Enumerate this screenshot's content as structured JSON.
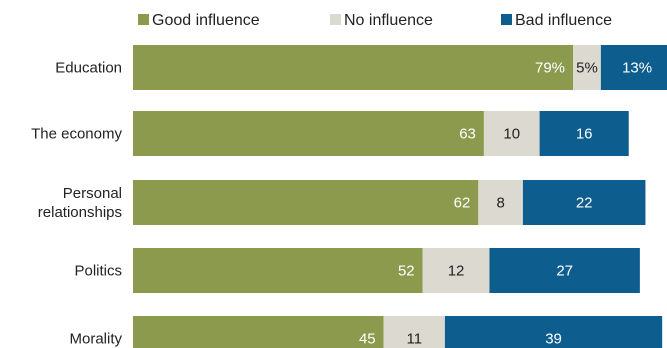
{
  "chart_data": {
    "type": "bar",
    "orientation": "horizontal",
    "stacked": true,
    "categories": [
      "Education",
      "The economy",
      "Personal relationships",
      "Politics",
      "Morality"
    ],
    "category_lines": [
      [
        "Education"
      ],
      [
        "The economy"
      ],
      [
        "Personal",
        "relationships"
      ],
      [
        "Politics"
      ],
      [
        "Morality"
      ]
    ],
    "series": [
      {
        "name": "Good influence",
        "color": "#8c9a4e",
        "text_color": "#ffffff",
        "values": [
          79,
          63,
          62,
          52,
          45
        ],
        "labels": [
          "79%",
          "63",
          "62",
          "52",
          "45"
        ]
      },
      {
        "name": "No influence",
        "color": "#dcdad0",
        "text_color": "#222222",
        "values": [
          5,
          10,
          8,
          12,
          11
        ],
        "labels": [
          "5%",
          "10",
          "8",
          "12",
          "11"
        ]
      },
      {
        "name": "Bad influence",
        "color": "#0d5d8e",
        "text_color": "#ffffff",
        "values": [
          13,
          16,
          22,
          27,
          39
        ],
        "labels": [
          "13%",
          "16",
          "22",
          "27",
          "39"
        ]
      }
    ],
    "legend_position": "top",
    "xlim": [
      0,
      100
    ],
    "grid": false
  }
}
